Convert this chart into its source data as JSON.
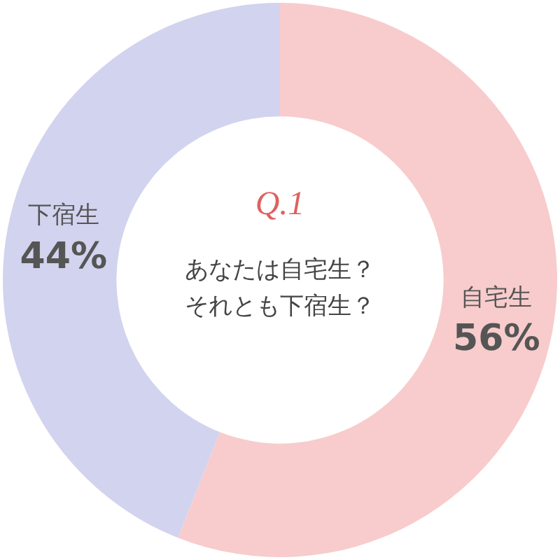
{
  "chart_data": {
    "type": "donut",
    "title": "Q.1",
    "subtitle": "あなたは自宅生？それとも下宿生？",
    "categories": [
      "自宅生",
      "下宿生"
    ],
    "values": [
      56,
      44
    ],
    "colors": [
      "#f8cccc",
      "#d2d3ee"
    ],
    "value_labels": [
      "56%",
      "44%"
    ]
  }
}
